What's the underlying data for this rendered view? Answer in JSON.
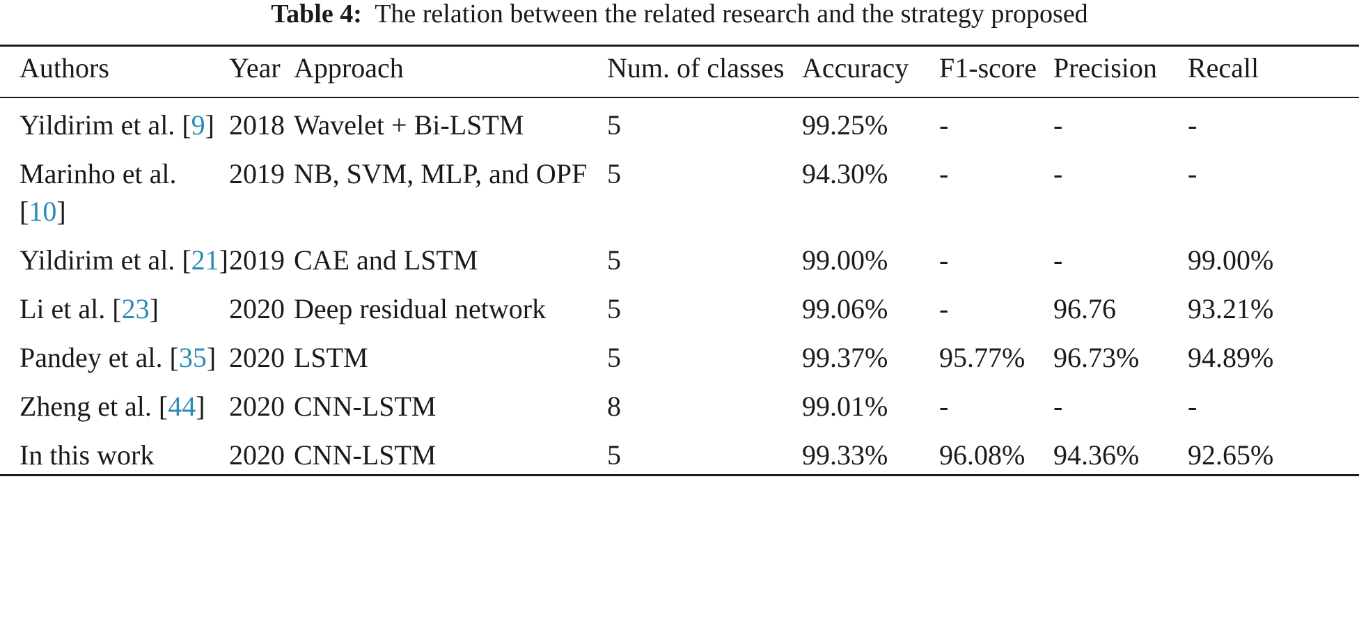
{
  "caption": {
    "label": "Table 4:",
    "text": "The relation between the related research and the strategy proposed"
  },
  "table": {
    "headers": [
      "Authors",
      "Year",
      "Approach",
      "Num. of classes",
      "Accuracy",
      "F1-score",
      "Precision",
      "Recall"
    ],
    "rows": [
      {
        "author": "Yildirim et al.",
        "ref": "9",
        "year": "2018",
        "approach": "Wavelet + Bi-LSTM",
        "classes": "5",
        "accuracy": "99.25%",
        "f1": "-",
        "precision": "-",
        "recall": "-"
      },
      {
        "author": "Marinho et al.",
        "ref": "10",
        "year": "2019",
        "approach": "NB, SVM, MLP, and OPF",
        "classes": "5",
        "accuracy": "94.30%",
        "f1": "-",
        "precision": "-",
        "recall": "-"
      },
      {
        "author": "Yildirim et al.",
        "ref": "21",
        "year": "2019",
        "approach": "CAE and LSTM",
        "classes": "5",
        "accuracy": "99.00%",
        "f1": "-",
        "precision": "-",
        "recall": "99.00%"
      },
      {
        "author": "Li et al.",
        "ref": "23",
        "year": "2020",
        "approach": "Deep residual network",
        "classes": "5",
        "accuracy": "99.06%",
        "f1": "-",
        "precision": "96.76",
        "recall": "93.21%"
      },
      {
        "author": "Pandey et al.",
        "ref": "35",
        "year": "2020",
        "approach": "LSTM",
        "classes": "5",
        "accuracy": "99.37%",
        "f1": "95.77%",
        "precision": "96.73%",
        "recall": "94.89%"
      },
      {
        "author": "Zheng et al.",
        "ref": "44",
        "year": "2020",
        "approach": "CNN-LSTM",
        "classes": "8",
        "accuracy": "99.01%",
        "f1": "-",
        "precision": "-",
        "recall": "-"
      },
      {
        "author": "In this work",
        "ref": "",
        "year": "2020",
        "approach": "CNN-LSTM",
        "classes": "5",
        "accuracy": "99.33%",
        "f1": "96.08%",
        "precision": "94.36%",
        "recall": "92.65%"
      }
    ]
  },
  "colors": {
    "text": "#1a1a1a",
    "reference_link": "#2a8ab8"
  }
}
